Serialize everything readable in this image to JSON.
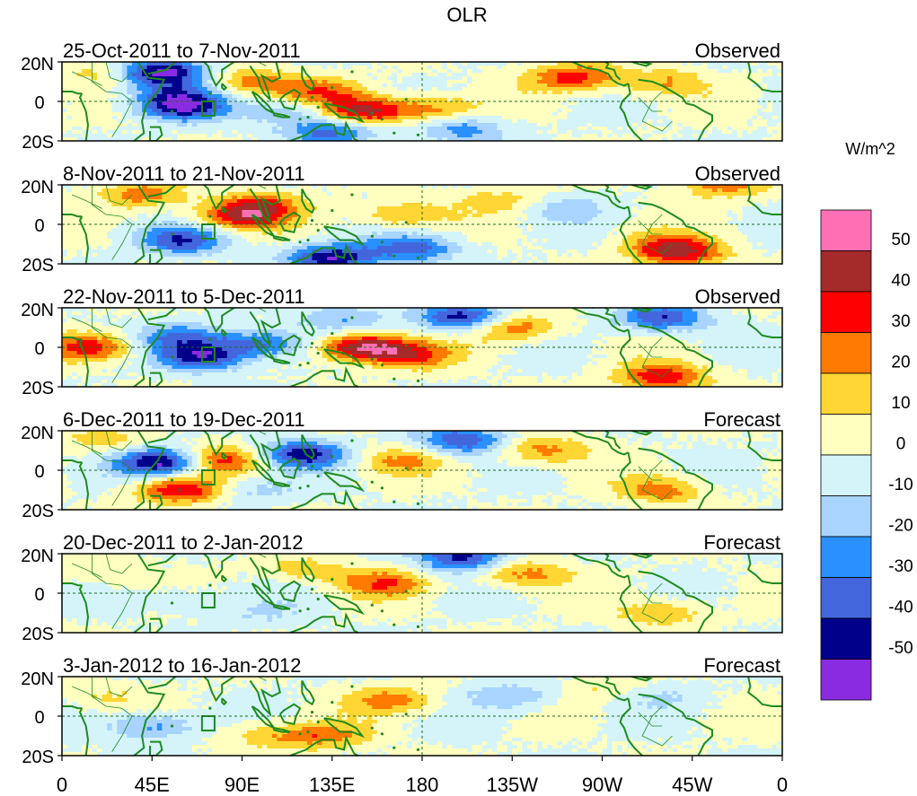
{
  "title": "OLR",
  "units": "W/m^2",
  "y_tick_labels": [
    "20N",
    "0",
    "20S"
  ],
  "x_tick_labels": [
    "0",
    "45E",
    "90E",
    "135E",
    "180",
    "135W",
    "90W",
    "45W",
    "0"
  ],
  "panels": [
    {
      "period": "25-Oct-2011 to 7-Nov-2011",
      "status": "Observed"
    },
    {
      "period": "8-Nov-2011 to 21-Nov-2011",
      "status": "Observed"
    },
    {
      "period": "22-Nov-2011 to 5-Dec-2011",
      "status": "Observed"
    },
    {
      "period": "6-Dec-2011 to 19-Dec-2011",
      "status": "Forecast"
    },
    {
      "period": "20-Dec-2011 to 2-Jan-2012",
      "status": "Forecast"
    },
    {
      "period": "3-Jan-2012 to 16-Jan-2012",
      "status": "Forecast"
    }
  ],
  "colorbar": {
    "labels": [
      "50",
      "40",
      "30",
      "20",
      "10",
      "0",
      "-10",
      "-20",
      "-30",
      "-40",
      "-50"
    ],
    "colors": [
      "#ff6fb4",
      "#a52a2a",
      "#ff0000",
      "#ff7a00",
      "#ffd633",
      "#ffffc0",
      "#d4f4fa",
      "#a8d4ff",
      "#2a90ff",
      "#4466dd",
      "#00008b",
      "#8a2be2"
    ]
  },
  "chart_data": {
    "type": "heatmap",
    "variable": "OLR anomaly",
    "lon_range": [
      0,
      360
    ],
    "lat_range": [
      -20,
      20
    ],
    "levels": [
      -50,
      -40,
      -30,
      -20,
      -10,
      0,
      10,
      20,
      30,
      40,
      50
    ],
    "anomaly_centers": [
      [
        {
          "lon": 50,
          "lat": 15,
          "v": -55
        },
        {
          "lon": 55,
          "lat": 4,
          "v": -25
        },
        {
          "lon": 60,
          "lat": -3,
          "v": -45
        },
        {
          "lon": 20,
          "lat": 15,
          "v": 15
        },
        {
          "lon": 95,
          "lat": 10,
          "v": 25
        },
        {
          "lon": 115,
          "lat": -5,
          "v": -20
        },
        {
          "lon": 150,
          "lat": -5,
          "v": 45
        },
        {
          "lon": 185,
          "lat": -4,
          "v": 25
        },
        {
          "lon": 130,
          "lat": 5,
          "v": 25
        },
        {
          "lon": 255,
          "lat": 12,
          "v": 35
        },
        {
          "lon": 135,
          "lat": -15,
          "v": -35
        },
        {
          "lon": 200,
          "lat": -14,
          "v": -25
        },
        {
          "lon": 300,
          "lat": 10,
          "v": 20
        }
      ],
      [
        {
          "lon": 90,
          "lat": 4,
          "v": 38
        },
        {
          "lon": 100,
          "lat": 10,
          "v": 25
        },
        {
          "lon": 60,
          "lat": -8,
          "v": -40
        },
        {
          "lon": 135,
          "lat": -17,
          "v": -48
        },
        {
          "lon": 170,
          "lat": 5,
          "v": 22
        },
        {
          "lon": 175,
          "lat": -12,
          "v": -35
        },
        {
          "lon": 220,
          "lat": 12,
          "v": 15
        },
        {
          "lon": 300,
          "lat": -10,
          "v": 20
        },
        {
          "lon": 310,
          "lat": -15,
          "v": 35
        },
        {
          "lon": 40,
          "lat": 15,
          "v": 25
        },
        {
          "lon": 250,
          "lat": 8,
          "v": -15
        },
        {
          "lon": 330,
          "lat": 20,
          "v": 25
        }
      ],
      [
        {
          "lon": 15,
          "lat": 0,
          "v": 35
        },
        {
          "lon": 60,
          "lat": 5,
          "v": -30
        },
        {
          "lon": 70,
          "lat": -5,
          "v": -45
        },
        {
          "lon": 100,
          "lat": 2,
          "v": -35
        },
        {
          "lon": 150,
          "lat": 0,
          "v": 52
        },
        {
          "lon": 175,
          "lat": -4,
          "v": 30
        },
        {
          "lon": 200,
          "lat": 15,
          "v": -45
        },
        {
          "lon": 225,
          "lat": 10,
          "v": 30
        },
        {
          "lon": 300,
          "lat": -15,
          "v": 38
        },
        {
          "lon": 300,
          "lat": 15,
          "v": -40
        },
        {
          "lon": 140,
          "lat": 15,
          "v": -20
        }
      ],
      [
        {
          "lon": 50,
          "lat": 4,
          "v": -55
        },
        {
          "lon": 60,
          "lat": -10,
          "v": 40
        },
        {
          "lon": 80,
          "lat": 5,
          "v": 35
        },
        {
          "lon": 120,
          "lat": 8,
          "v": -45
        },
        {
          "lon": 95,
          "lat": -10,
          "v": -15
        },
        {
          "lon": 200,
          "lat": 15,
          "v": -40
        },
        {
          "lon": 240,
          "lat": 10,
          "v": 25
        },
        {
          "lon": 300,
          "lat": -10,
          "v": 25
        },
        {
          "lon": 20,
          "lat": 15,
          "v": 15
        },
        {
          "lon": 170,
          "lat": 5,
          "v": 20
        }
      ],
      [
        {
          "lon": 160,
          "lat": 5,
          "v": 28
        },
        {
          "lon": 200,
          "lat": 18,
          "v": -45
        },
        {
          "lon": 120,
          "lat": 12,
          "v": 15
        },
        {
          "lon": 60,
          "lat": -3,
          "v": -10
        },
        {
          "lon": 230,
          "lat": 10,
          "v": 25
        },
        {
          "lon": 300,
          "lat": -10,
          "v": 20
        },
        {
          "lon": 100,
          "lat": -10,
          "v": -10
        },
        {
          "lon": 20,
          "lat": 10,
          "v": 10
        }
      ],
      [
        {
          "lon": 45,
          "lat": -5,
          "v": -25
        },
        {
          "lon": 165,
          "lat": 8,
          "v": 25
        },
        {
          "lon": 225,
          "lat": 10,
          "v": -20
        },
        {
          "lon": 100,
          "lat": -10,
          "v": 15
        },
        {
          "lon": 130,
          "lat": -10,
          "v": 25
        },
        {
          "lon": 270,
          "lat": 15,
          "v": 10
        },
        {
          "lon": 300,
          "lat": 10,
          "v": -10
        },
        {
          "lon": 20,
          "lat": 10,
          "v": 10
        }
      ]
    ]
  }
}
